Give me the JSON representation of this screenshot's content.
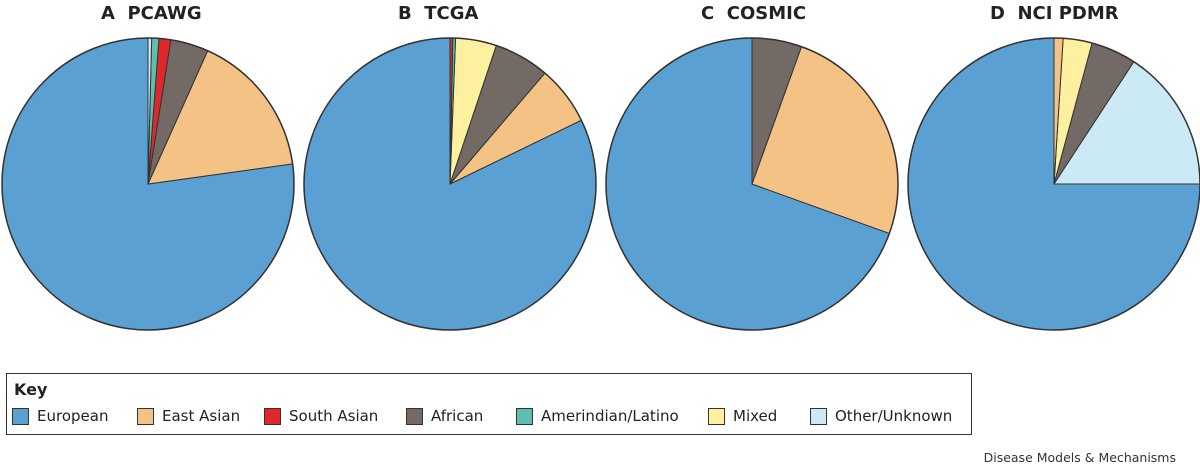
{
  "charts": [
    {
      "letter": "A",
      "name": "PCAWG"
    },
    {
      "letter": "B",
      "name": "TCGA"
    },
    {
      "letter": "C",
      "name": "COSMIC"
    },
    {
      "letter": "D",
      "name": "NCI PDMR"
    }
  ],
  "key": {
    "title": "Key",
    "items": [
      {
        "label": "European",
        "color": "#5ba0d3"
      },
      {
        "label": "East Asian",
        "color": "#f5c286"
      },
      {
        "label": "South Asian",
        "color": "#e0282a"
      },
      {
        "label": "African",
        "color": "#736965"
      },
      {
        "label": "Amerindian/Latino",
        "color": "#5dbfb0"
      },
      {
        "label": "Mixed",
        "color": "#fdf09e"
      },
      {
        "label": "Other/Unknown",
        "color": "#cbeaf5"
      }
    ]
  },
  "journal": "Disease Models & Mechanisms",
  "chart_data": [
    {
      "type": "pie",
      "title": "A  PCAWG",
      "series": [
        {
          "values": [
            {
              "label": "European",
              "value": 77.2
            },
            {
              "label": "East Asian",
              "value": 16.1
            },
            {
              "label": "African",
              "value": 4.2
            },
            {
              "label": "South Asian",
              "value": 1.3
            },
            {
              "label": "Amerindian/Latino",
              "value": 0.8
            },
            {
              "label": "Other/Unknown",
              "value": 0.4
            }
          ]
        }
      ]
    },
    {
      "type": "pie",
      "title": "B  TCGA",
      "series": [
        {
          "values": [
            {
              "label": "European",
              "value": 81.7
            },
            {
              "label": "East Asian",
              "value": 6.5
            },
            {
              "label": "African",
              "value": 6.1
            },
            {
              "label": "Mixed",
              "value": 4.5
            },
            {
              "label": "Amerindian/Latino",
              "value": 0.3
            },
            {
              "label": "South Asian",
              "value": 0.3
            }
          ]
        }
      ]
    },
    {
      "type": "pie",
      "title": "C  COSMIC",
      "series": [
        {
          "values": [
            {
              "label": "European",
              "value": 69.5
            },
            {
              "label": "East Asian",
              "value": 25.0
            },
            {
              "label": "African",
              "value": 5.5
            }
          ]
        }
      ]
    },
    {
      "type": "pie",
      "title": "D  NCI PDMR",
      "series": [
        {
          "values": [
            {
              "label": "European",
              "value": 75.0
            },
            {
              "label": "Other/Unknown",
              "value": 15.8
            },
            {
              "label": "African",
              "value": 5.0
            },
            {
              "label": "Mixed",
              "value": 3.2
            },
            {
              "label": "East Asian",
              "value": 1.0
            }
          ]
        }
      ]
    }
  ]
}
